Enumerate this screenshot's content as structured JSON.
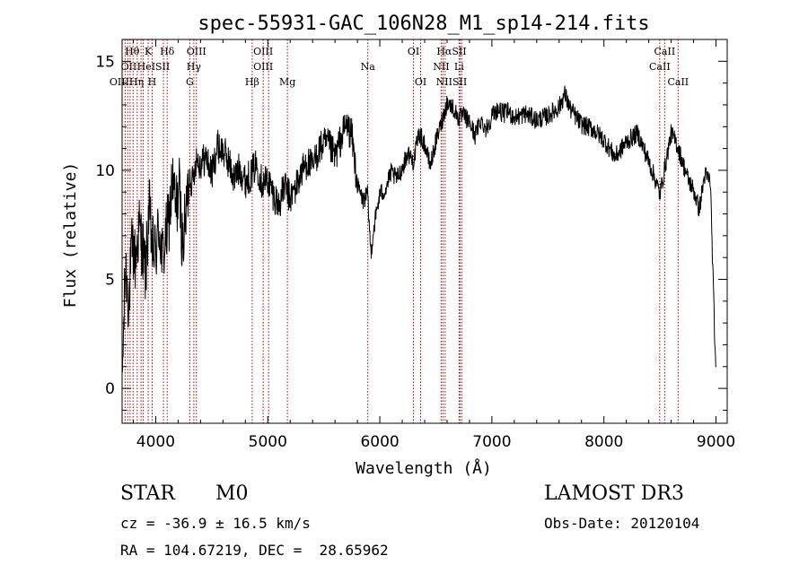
{
  "chart_data": {
    "type": "line",
    "title": "spec-55931-GAC_106N28_M1_sp14-214.fits",
    "xlabel": "Wavelength (Å)",
    "ylabel": "Flux (relative)",
    "xlim": [
      3700,
      9100
    ],
    "ylim": [
      -1.6,
      16.0
    ],
    "x_ticks": [
      4000,
      5000,
      6000,
      7000,
      8000,
      9000
    ],
    "x_tick_labels": [
      "4000",
      "5000",
      "6000",
      "7000",
      "8000",
      "9000"
    ],
    "y_ticks": [
      0,
      5,
      10,
      15
    ],
    "y_tick_labels": [
      "0",
      "5",
      "10",
      "15"
    ],
    "grid": false,
    "series": [
      {
        "name": "flux",
        "x": [
          3700,
          3730,
          3760,
          3790,
          3820,
          3850,
          3880,
          3910,
          3940,
          3970,
          4000,
          4030,
          4060,
          4090,
          4120,
          4150,
          4180,
          4210,
          4240,
          4270,
          4300,
          4330,
          4360,
          4400,
          4450,
          4500,
          4550,
          4600,
          4650,
          4700,
          4750,
          4800,
          4850,
          4900,
          4950,
          5000,
          5050,
          5100,
          5150,
          5200,
          5250,
          5300,
          5350,
          5400,
          5450,
          5500,
          5550,
          5600,
          5650,
          5700,
          5750,
          5800,
          5850,
          5890,
          5920,
          5950,
          6000,
          6050,
          6100,
          6150,
          6200,
          6250,
          6300,
          6350,
          6400,
          6450,
          6500,
          6550,
          6600,
          6650,
          6700,
          6750,
          6800,
          6850,
          6900,
          6950,
          7000,
          7050,
          7100,
          7150,
          7200,
          7300,
          7400,
          7500,
          7600,
          7650,
          7700,
          7800,
          7900,
          8000,
          8100,
          8200,
          8300,
          8400,
          8450,
          8500,
          8550,
          8600,
          8650,
          8700,
          8750,
          8800,
          8850,
          8900,
          8950,
          9000
        ],
        "y": [
          0.2,
          5.6,
          3.9,
          6.6,
          5.8,
          7.4,
          6.6,
          5.2,
          8.3,
          6.4,
          6.2,
          7.5,
          5.9,
          6.9,
          7.8,
          9.5,
          8.2,
          9.2,
          6.5,
          7.9,
          9.8,
          9.4,
          10.6,
          10.3,
          10.6,
          9.8,
          11.1,
          10.9,
          10.4,
          9.6,
          10.1,
          9.5,
          9.8,
          10.3,
          9.4,
          9.6,
          8.9,
          8.4,
          9.3,
          8.7,
          9.2,
          9.9,
          10.4,
          10.1,
          10.9,
          11.2,
          11.1,
          10.6,
          11.4,
          12.1,
          11.6,
          9.3,
          8.6,
          8.9,
          6.2,
          7.5,
          8.9,
          9.1,
          9.9,
          9.6,
          10.1,
          10.8,
          10.4,
          11.7,
          11.2,
          10.2,
          11.3,
          12.2,
          13.1,
          12.9,
          12.4,
          12.5,
          12.2,
          11.6,
          12.3,
          11.9,
          12.5,
          12.8,
          12.6,
          12.7,
          12.4,
          12.6,
          12.3,
          12.5,
          12.9,
          13.5,
          12.8,
          12.1,
          11.9,
          11.4,
          10.6,
          11.3,
          11.7,
          10.4,
          9.7,
          8.9,
          10.3,
          11.7,
          11.2,
          10.4,
          9.6,
          9.1,
          8.2,
          9.8,
          9.5,
          0.2
        ]
      }
    ],
    "lines": [
      {
        "wavelength": 3727,
        "label": "OII"
      },
      {
        "wavelength": 3750,
        "label": "Hθ"
      },
      {
        "wavelength": 3771,
        "label": "Hι"
      },
      {
        "wavelength": 3798,
        "label": "Hθ"
      },
      {
        "wavelength": 3835,
        "label": "Hη"
      },
      {
        "wavelength": 3869,
        "label": "NeIII"
      },
      {
        "wavelength": 3889,
        "label": "HeI"
      },
      {
        "wavelength": 3933,
        "label": "K"
      },
      {
        "wavelength": 3968,
        "label": "H"
      },
      {
        "wavelength": 4069,
        "label": "SII"
      },
      {
        "wavelength": 4102,
        "label": "Hδ"
      },
      {
        "wavelength": 4304,
        "label": "G"
      },
      {
        "wavelength": 4340,
        "label": "Hγ"
      },
      {
        "wavelength": 4363,
        "label": "OIII"
      },
      {
        "wavelength": 4861,
        "label": "Hβ"
      },
      {
        "wavelength": 4959,
        "label": "OIII"
      },
      {
        "wavelength": 5007,
        "label": "OIII"
      },
      {
        "wavelength": 5175,
        "label": "Mg"
      },
      {
        "wavelength": 5893,
        "label": "Na"
      },
      {
        "wavelength": 6300,
        "label": "OI"
      },
      {
        "wavelength": 6364,
        "label": "OI"
      },
      {
        "wavelength": 6548,
        "label": "NII"
      },
      {
        "wavelength": 6563,
        "label": "Hα"
      },
      {
        "wavelength": 6583,
        "label": "NII"
      },
      {
        "wavelength": 6707,
        "label": "Li"
      },
      {
        "wavelength": 6716,
        "label": "SII"
      },
      {
        "wavelength": 6731,
        "label": "SII"
      },
      {
        "wavelength": 8498,
        "label": "CaII"
      },
      {
        "wavelength": 8542,
        "label": "CaII"
      },
      {
        "wavelength": 8662,
        "label": "CaII"
      }
    ],
    "line_labels": [
      {
        "text": "Hθ",
        "wavelength": 3790,
        "row": 0
      },
      {
        "text": "K",
        "wavelength": 3933,
        "row": 0
      },
      {
        "text": "Hδ",
        "wavelength": 4102,
        "row": 0
      },
      {
        "text": "OIII",
        "wavelength": 4363,
        "row": 0
      },
      {
        "text": "OIII",
        "wavelength": 4959,
        "row": 0
      },
      {
        "text": "OI",
        "wavelength": 6300,
        "row": 0
      },
      {
        "text": "HαSII",
        "wavelength": 6640,
        "row": 0
      },
      {
        "text": "CaII",
        "wavelength": 8542,
        "row": 0
      },
      {
        "text": "OII",
        "wavelength": 3760,
        "row": 1
      },
      {
        "text": "HeISII",
        "wavelength": 3980,
        "row": 1
      },
      {
        "text": "Hγ",
        "wavelength": 4340,
        "row": 1
      },
      {
        "text": "OIII",
        "wavelength": 4959,
        "row": 1
      },
      {
        "text": "Na",
        "wavelength": 5893,
        "row": 1
      },
      {
        "text": "NII",
        "wavelength": 6548,
        "row": 1
      },
      {
        "text": "Li",
        "wavelength": 6707,
        "row": 1
      },
      {
        "text": "CaII",
        "wavelength": 8498,
        "row": 1
      },
      {
        "text": "OIIIHη",
        "wavelength": 3740,
        "row": 2
      },
      {
        "text": "H",
        "wavelength": 3968,
        "row": 2
      },
      {
        "text": "G",
        "wavelength": 4304,
        "row": 2
      },
      {
        "text": "Hβ",
        "wavelength": 4861,
        "row": 2
      },
      {
        "text": "Mg",
        "wavelength": 5175,
        "row": 2
      },
      {
        "text": "OI",
        "wavelength": 6364,
        "row": 2
      },
      {
        "text": "NIISII",
        "wavelength": 6640,
        "row": 2
      },
      {
        "text": "CaII",
        "wavelength": 8662,
        "row": 2
      }
    ],
    "colors": {
      "spectrum": "#000000",
      "lines": "#b00000",
      "axis": "#000000"
    }
  },
  "info": {
    "object_class": "STAR",
    "subclass": "M0",
    "survey": "LAMOST DR3",
    "cz": "cz = -36.9 ± 16.5 km/s",
    "obs_date": "Obs-Date: 20120104",
    "coords": "RA = 104.67219, DEC =  28.65962"
  }
}
